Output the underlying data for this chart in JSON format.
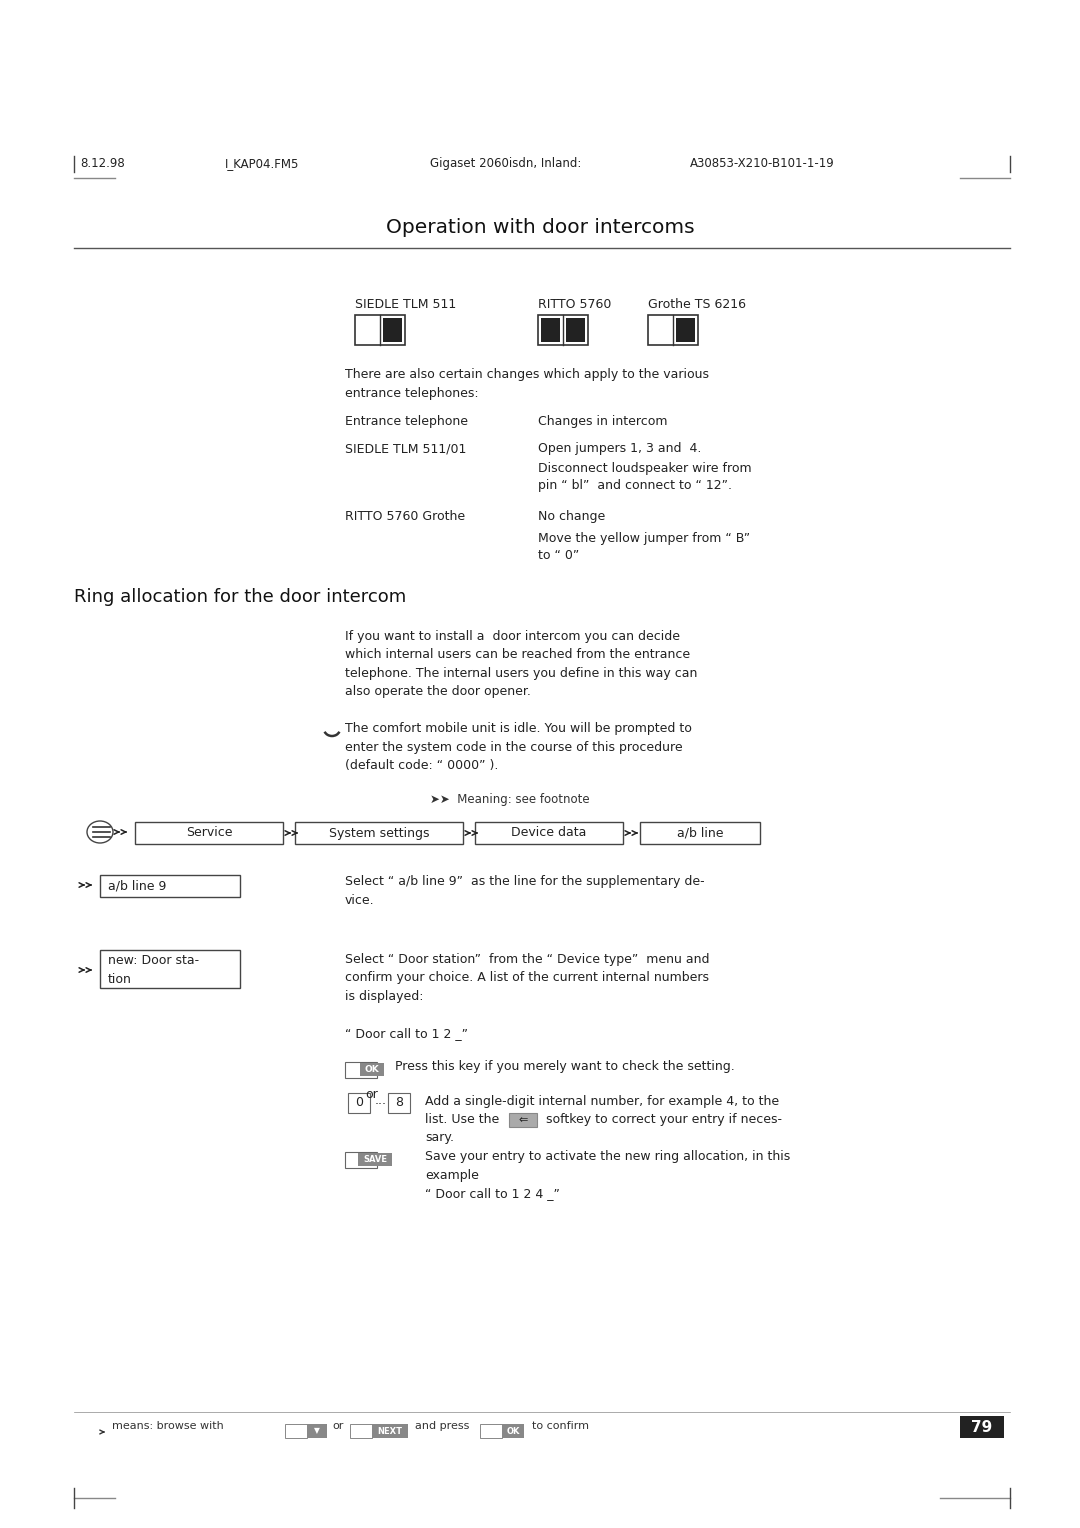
{
  "page_bg": "#ffffff",
  "header_left": "8.12.98",
  "header_mid_left": "I_KAP04.FM5",
  "header_mid": "Gigaset 2060isdn, Inland:",
  "header_right": "A30853-X210-B101-1-19",
  "section_title": "Operation with door intercoms",
  "subsection_title": "Ring allocation for the door intercom",
  "footer_page": "79",
  "col1_label": "SIEDLE TLM 511",
  "col2_label": "RITTO 5760",
  "col3_label": "Grothe TS 6216",
  "nav_items": [
    "Service",
    "System settings",
    "Device data",
    "a/b line"
  ],
  "step1_box": "a/b line 9",
  "step2_box_line1": "new: Door sta-",
  "step2_box_line2": "tion",
  "ok_text": "Press this key if you merely want to check the setting.",
  "or_text": "or",
  "save_text_line1": "Save your entry to activate the new ring allocation, in this",
  "save_text_line2": "example",
  "save_text_line3": "“ Door call to 1 2 4 _”"
}
